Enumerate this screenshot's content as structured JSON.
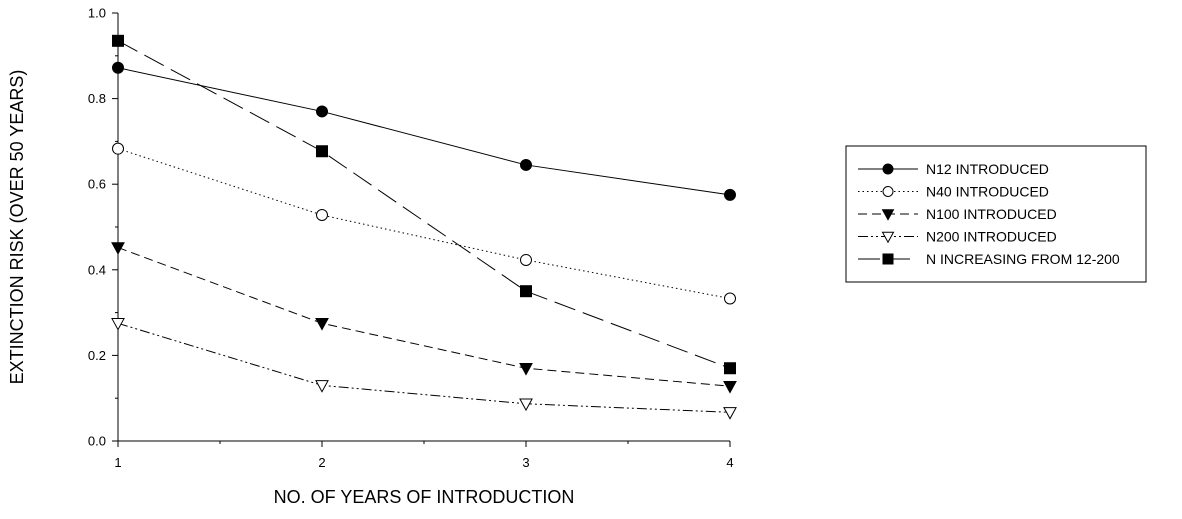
{
  "chart_data": {
    "type": "line",
    "title": "",
    "xlabel": "NO. OF YEARS OF INTRODUCTION",
    "ylabel": "EXTINCTION RISK (OVER 50 YEARS)",
    "xlim": [
      1,
      4
    ],
    "ylim": [
      0.0,
      1.0
    ],
    "x_ticks": [
      "1",
      "2",
      "3",
      "4"
    ],
    "y_ticks": [
      "0.0",
      "0.2",
      "0.4",
      "0.6",
      "0.8",
      "1.0"
    ],
    "x": [
      1,
      2,
      3,
      4
    ],
    "grid": false,
    "legend_position": "right",
    "series": [
      {
        "name": "N12 INTRODUCED",
        "values": [
          0.872,
          0.77,
          0.645,
          0.575
        ],
        "marker": "filled-circle",
        "line": "solid",
        "color": "#000000"
      },
      {
        "name": "N40 INTRODUCED",
        "values": [
          0.683,
          0.528,
          0.423,
          0.333
        ],
        "marker": "open-circle",
        "line": "dotted",
        "color": "#000000"
      },
      {
        "name": "N100 INTRODUCED",
        "values": [
          0.452,
          0.275,
          0.17,
          0.128
        ],
        "marker": "filled-triangle-down",
        "line": "dashed",
        "color": "#000000"
      },
      {
        "name": "N200 INTRODUCED",
        "values": [
          0.275,
          0.13,
          0.087,
          0.067
        ],
        "marker": "open-triangle-down",
        "line": "dash-dot-dot",
        "color": "#000000"
      },
      {
        "name": "N INCREASING FROM 12-200",
        "values": [
          0.935,
          0.677,
          0.35,
          0.17
        ],
        "marker": "filled-square",
        "line": "long-dash",
        "color": "#000000"
      }
    ]
  }
}
